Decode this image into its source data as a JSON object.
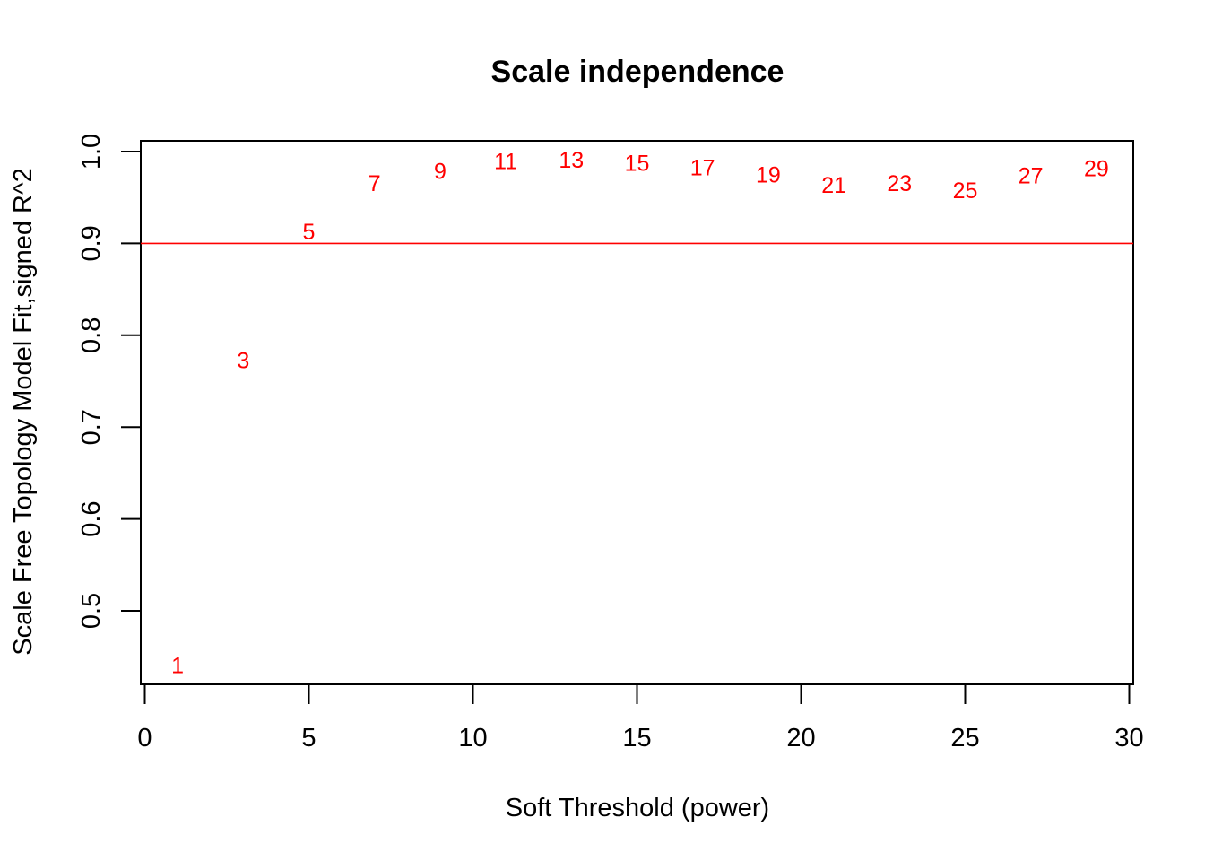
{
  "chart_data": {
    "type": "scatter",
    "title": "Scale independence",
    "xlabel": "Soft Threshold (power)",
    "ylabel": "Scale Free Topology Model Fit,signed R^2",
    "xlim": [
      0,
      30
    ],
    "ylim": [
      0.42,
      1.0
    ],
    "x_ticks": [
      0,
      5,
      10,
      15,
      20,
      25,
      30
    ],
    "y_ticks": [
      0.5,
      0.6,
      0.7,
      0.8,
      0.9,
      1.0
    ],
    "x_tick_labels": [
      "0",
      "5",
      "10",
      "15",
      "20",
      "25",
      "30"
    ],
    "y_tick_labels": [
      "0.5",
      "0.6",
      "0.7",
      "0.8",
      "0.9",
      "1.0"
    ],
    "points": [
      {
        "x": 1,
        "y": 0.44,
        "label": "1"
      },
      {
        "x": 3,
        "y": 0.772,
        "label": "3"
      },
      {
        "x": 5,
        "y": 0.912,
        "label": "5"
      },
      {
        "x": 7,
        "y": 0.965,
        "label": "7"
      },
      {
        "x": 9,
        "y": 0.978,
        "label": "9"
      },
      {
        "x": 11,
        "y": 0.989,
        "label": "11"
      },
      {
        "x": 13,
        "y": 0.99,
        "label": "13"
      },
      {
        "x": 15,
        "y": 0.987,
        "label": "15"
      },
      {
        "x": 17,
        "y": 0.982,
        "label": "17"
      },
      {
        "x": 19,
        "y": 0.974,
        "label": "19"
      },
      {
        "x": 21,
        "y": 0.963,
        "label": "21"
      },
      {
        "x": 23,
        "y": 0.965,
        "label": "23"
      },
      {
        "x": 25,
        "y": 0.957,
        "label": "25"
      },
      {
        "x": 27,
        "y": 0.973,
        "label": "27"
      },
      {
        "x": 29,
        "y": 0.981,
        "label": "29"
      }
    ],
    "hline": 0.9,
    "colors": {
      "points": "#ff0000",
      "hline": "#ff0000",
      "axes": "#000000"
    },
    "grid": false,
    "legend": "none"
  }
}
